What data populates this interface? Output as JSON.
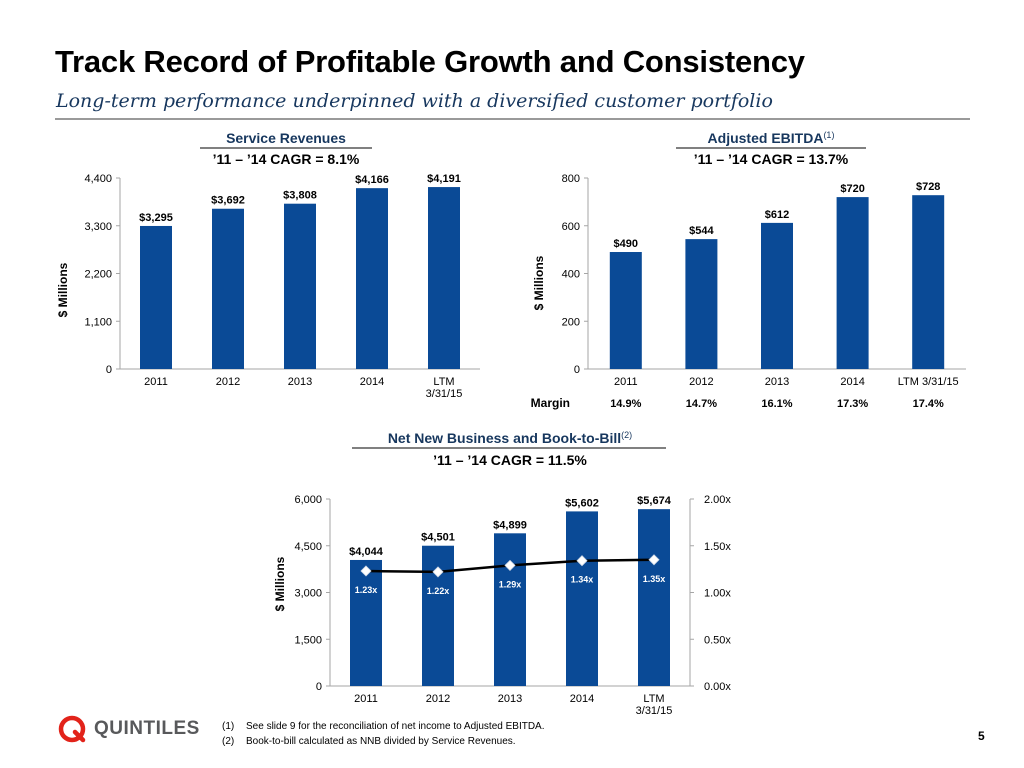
{
  "page": {
    "title": "Track Record of Profitable Growth and Consistency",
    "subtitle": "Long-term performance underpinned with a diversified customer portfolio",
    "page_number": "5",
    "logo_text": "QUINTILES",
    "footnotes": [
      {
        "marker": "(1)",
        "text": "See slide 9 for the reconciliation of net income to Adjusted EBITDA."
      },
      {
        "marker": "(2)",
        "text": "Book-to-bill calculated as NNB divided by Service Revenues."
      }
    ]
  },
  "colors": {
    "bar": "#0a4a96",
    "line": "#000000",
    "marker": "#ffffff",
    "title_blue": "#17375e",
    "axis": "#a6a6a6"
  },
  "chart_data": [
    {
      "type": "bar",
      "title": "Service Revenues",
      "subtitle": "’11 – ’14 CAGR = 8.1%",
      "ylabel": "$ Millions",
      "categories": [
        "2011",
        "2012",
        "2013",
        "2014",
        "LTM 3/31/15"
      ],
      "values": [
        3295,
        3692,
        3808,
        4166,
        4191
      ],
      "data_labels": [
        "$3,295",
        "$3,692",
        "$3,808",
        "$4,166",
        "$4,191"
      ],
      "yticks": [
        0,
        1100,
        2200,
        3300,
        4400
      ],
      "ytick_labels": [
        "0",
        "1,100",
        "2,200",
        "3,300",
        "4,400"
      ],
      "ylim": [
        0,
        4400
      ]
    },
    {
      "type": "bar",
      "title": "Adjusted EBITDA",
      "title_sup": "(1)",
      "subtitle": "’11 – ’14 CAGR = 13.7%",
      "ylabel": "$ Millions",
      "categories": [
        "2011",
        "2012",
        "2013",
        "2014",
        "LTM 3/31/15"
      ],
      "values": [
        490,
        544,
        612,
        720,
        728
      ],
      "data_labels": [
        "$490",
        "$544",
        "$612",
        "$720",
        "$728"
      ],
      "yticks": [
        0,
        200,
        400,
        600,
        800
      ],
      "ytick_labels": [
        "0",
        "200",
        "400",
        "600",
        "800"
      ],
      "ylim": [
        0,
        800
      ],
      "margin_label": "Margin",
      "margins": [
        "14.9%",
        "14.7%",
        "16.1%",
        "17.3%",
        "17.4%"
      ]
    },
    {
      "type": "bar",
      "title": "Net New Business and Book-to-Bill",
      "title_sup": "(2)",
      "subtitle": "’11 – ’14 CAGR = 11.5%",
      "ylabel": "$ Millions",
      "categories": [
        "2011",
        "2012",
        "2013",
        "2014",
        "LTM 3/31/15"
      ],
      "values": [
        4044,
        4501,
        4899,
        5602,
        5674
      ],
      "data_labels": [
        "$4,044",
        "$4,501",
        "$4,899",
        "$5,602",
        "$5,674"
      ],
      "yticks": [
        0,
        1500,
        3000,
        4500,
        6000
      ],
      "ytick_labels": [
        "0",
        "1,500",
        "3,000",
        "4,500",
        "6,000"
      ],
      "ylim": [
        0,
        6000
      ],
      "secondary_series": {
        "name": "Book-to-Bill",
        "type": "line",
        "values": [
          1.23,
          1.22,
          1.29,
          1.34,
          1.35
        ],
        "data_labels": [
          "1.23x",
          "1.22x",
          "1.29x",
          "1.34x",
          "1.35x"
        ],
        "yticks": [
          0,
          0.5,
          1.0,
          1.5,
          2.0
        ],
        "ytick_labels": [
          "0.00x",
          "0.50x",
          "1.00x",
          "1.50x",
          "2.00x"
        ],
        "ylim": [
          0,
          2.0
        ]
      }
    }
  ]
}
